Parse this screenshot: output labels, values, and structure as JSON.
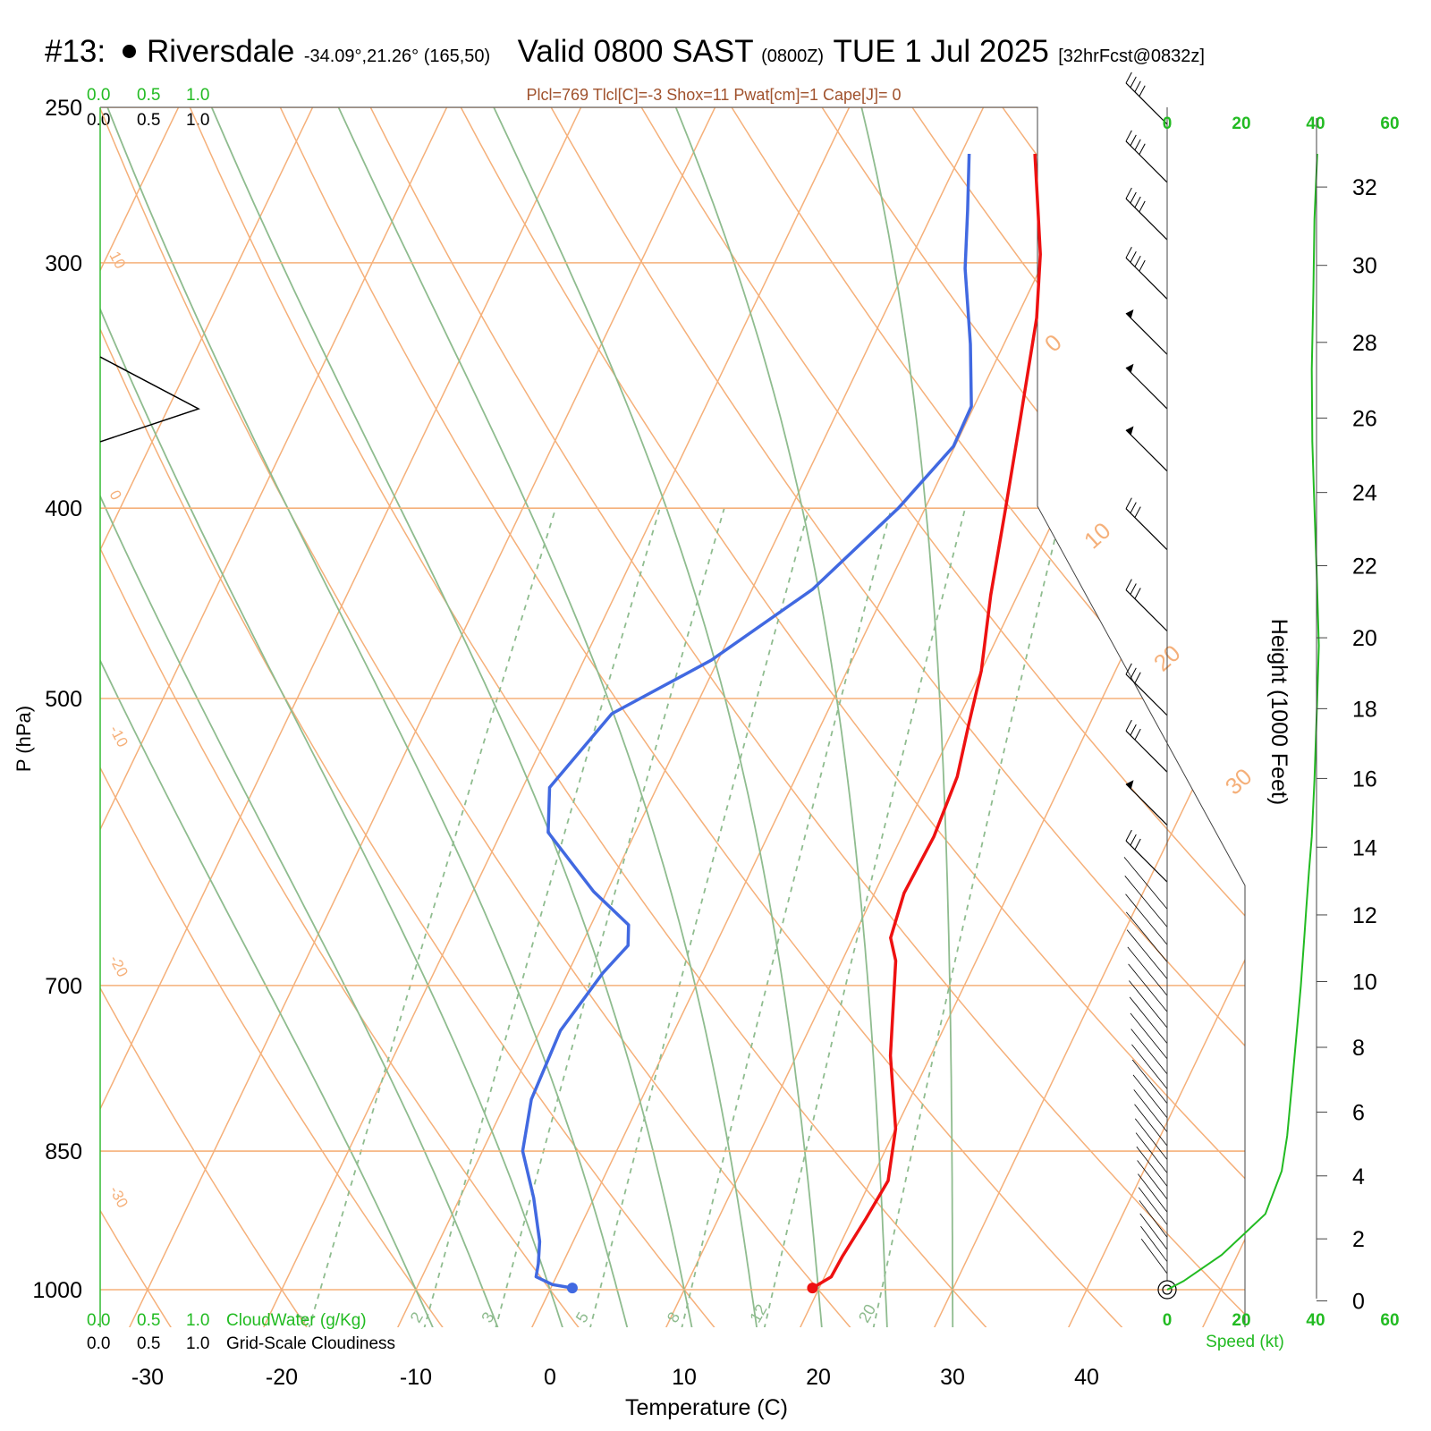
{
  "header": {
    "station_no": "#13:",
    "station_name": "Riversdale",
    "coords": "-34.09°,21.26° (165,50)",
    "valid_label": "Valid 0800 SAST",
    "valid_z": "(0800Z)",
    "date": "TUE 1 Jul 2025",
    "fcst": "[32hrFcst@0832z]"
  },
  "indices": "Plcl=769 Tlcl[C]=-3 Shox=11 Pwat[cm]=1 Cape[J]= 0",
  "top_scale": {
    "green": [
      "0.0",
      "0.5",
      "1.0"
    ],
    "black": [
      "0.0",
      "0.5",
      "1.0"
    ]
  },
  "bottom_scale": {
    "green": [
      "0.0",
      "0.5",
      "1.0"
    ],
    "green_label": "CloudWater (g/Kg)",
    "black": [
      "0.0",
      "0.5",
      "1.0"
    ],
    "black_label": "Grid-Scale Cloudiness"
  },
  "speed_axis": {
    "ticks": [
      "0",
      "20",
      "40",
      "60"
    ],
    "label": "Speed (kt)"
  },
  "colors": {
    "isotherm": "#f5b07a",
    "dry_adiabat": "#f5b07a",
    "moist_adiabat": "#8fbc8f",
    "mixing_ratio": "#8fbc8f",
    "temperature": "#ee1111",
    "dewpoint": "#4169e1",
    "speed": "#22bb22"
  },
  "chart_data": {
    "type": "line",
    "title": "",
    "xlabel": "Temperature (C)",
    "ylabel": "P (hPa)",
    "y2label": "Height (1000 Feet)",
    "xlim": [
      -30,
      40
    ],
    "x_ticks": [
      -30,
      -20,
      -10,
      0,
      10,
      20,
      30,
      40
    ],
    "y_ticks": [
      250,
      300,
      400,
      500,
      700,
      850,
      1000
    ],
    "height_ticks": [
      0,
      2,
      4,
      6,
      8,
      10,
      12,
      14,
      16,
      18,
      20,
      22,
      24,
      26,
      28,
      30,
      32
    ],
    "isotherm_labels": [
      "10",
      "0",
      "-10",
      "-20",
      "-30"
    ],
    "dry_adiabat_labels": [
      "0",
      "10",
      "20",
      "30"
    ],
    "mixing_ratio_labels": [
      "1",
      "2",
      "3",
      "5",
      "8",
      "12",
      "20"
    ],
    "series": [
      {
        "name": "Temperature",
        "points": [
          [
            -4.5,
            264
          ],
          [
            -2.5,
            280
          ],
          [
            -0.5,
            297
          ],
          [
            1.5,
            320
          ],
          [
            4,
            362
          ],
          [
            6,
            400
          ],
          [
            8,
            443
          ],
          [
            10,
            484
          ],
          [
            11,
            516
          ],
          [
            12,
            548
          ],
          [
            12.4,
            588
          ],
          [
            12.2,
            628
          ],
          [
            12.8,
            662
          ],
          [
            14,
            680
          ],
          [
            17,
            760
          ],
          [
            20,
            828
          ],
          [
            21.3,
            880
          ],
          [
            21,
            920
          ],
          [
            20.6,
            962
          ],
          [
            20.5,
            985
          ],
          [
            19.5,
            998
          ]
        ]
      },
      {
        "name": "Dewpoint",
        "points": [
          [
            -9.4,
            264
          ],
          [
            -7.5,
            282
          ],
          [
            -5.6,
            302
          ],
          [
            -2.5,
            330
          ],
          [
            -0.2,
            355
          ],
          [
            -0.1,
            372
          ],
          [
            -2,
            400
          ],
          [
            -5.5,
            440
          ],
          [
            -10.5,
            478
          ],
          [
            -16,
            509
          ],
          [
            -18,
            555
          ],
          [
            -16.5,
            585
          ],
          [
            -11,
            627
          ],
          [
            -7.2,
            652
          ],
          [
            -6.5,
            668
          ],
          [
            -7.4,
            690
          ],
          [
            -8.5,
            738
          ],
          [
            -8.2,
            800
          ],
          [
            -7,
            850
          ],
          [
            -4.5,
            898
          ],
          [
            -2.5,
            945
          ],
          [
            -1.8,
            970
          ],
          [
            -1.5,
            985
          ],
          [
            0,
            994
          ],
          [
            1.6,
            998
          ]
        ]
      },
      {
        "name": "Speed (kt)",
        "points": [
          [
            0,
            1000
          ],
          [
            3,
            990
          ],
          [
            10,
            960
          ],
          [
            18,
            915
          ],
          [
            21,
            870
          ],
          [
            22,
            835
          ],
          [
            23,
            780
          ],
          [
            24.5,
            700
          ],
          [
            25.2,
            658
          ],
          [
            25.5,
            640
          ],
          [
            26,
            612
          ],
          [
            26.5,
            588
          ],
          [
            27,
            550
          ],
          [
            27.5,
            500
          ],
          [
            27.8,
            470
          ],
          [
            27.4,
            430
          ],
          [
            27,
            400
          ],
          [
            26.6,
            370
          ],
          [
            26.5,
            340
          ],
          [
            26.8,
            310
          ],
          [
            27,
            285
          ],
          [
            27.5,
            264
          ]
        ]
      }
    ],
    "dry_adiabats_theta_C": [
      -30,
      -20,
      -10,
      0,
      10,
      20,
      30,
      40,
      50,
      60,
      70,
      80,
      90,
      100,
      110,
      120,
      130
    ],
    "moist_adiabats_thetaw_C": [
      -10,
      -5,
      0,
      5,
      10,
      15,
      20,
      25,
      30
    ],
    "mixing_ratios_gkg": [
      1,
      2,
      3,
      5,
      8,
      12,
      20
    ],
    "wind_barbs": [
      {
        "p": 255,
        "dir": 315,
        "spd": 45
      },
      {
        "p": 273,
        "dir": 315,
        "spd": 45
      },
      {
        "p": 292,
        "dir": 315,
        "spd": 45
      },
      {
        "p": 313,
        "dir": 315,
        "spd": 45
      },
      {
        "p": 334,
        "dir": 315,
        "spd": 50
      },
      {
        "p": 356,
        "dir": 315,
        "spd": 50
      },
      {
        "p": 383,
        "dir": 315,
        "spd": 50
      },
      {
        "p": 420,
        "dir": 315,
        "spd": 35
      },
      {
        "p": 462,
        "dir": 315,
        "spd": 35
      },
      {
        "p": 510,
        "dir": 315,
        "spd": 35
      },
      {
        "p": 545,
        "dir": 315,
        "spd": 35
      },
      {
        "p": 580,
        "dir": 315,
        "spd": 50
      },
      {
        "p": 620,
        "dir": 315,
        "spd": 35
      }
    ],
    "low_barbs_count": 26,
    "cloudiness_triangle_p": [
      335,
      356,
      370
    ]
  }
}
